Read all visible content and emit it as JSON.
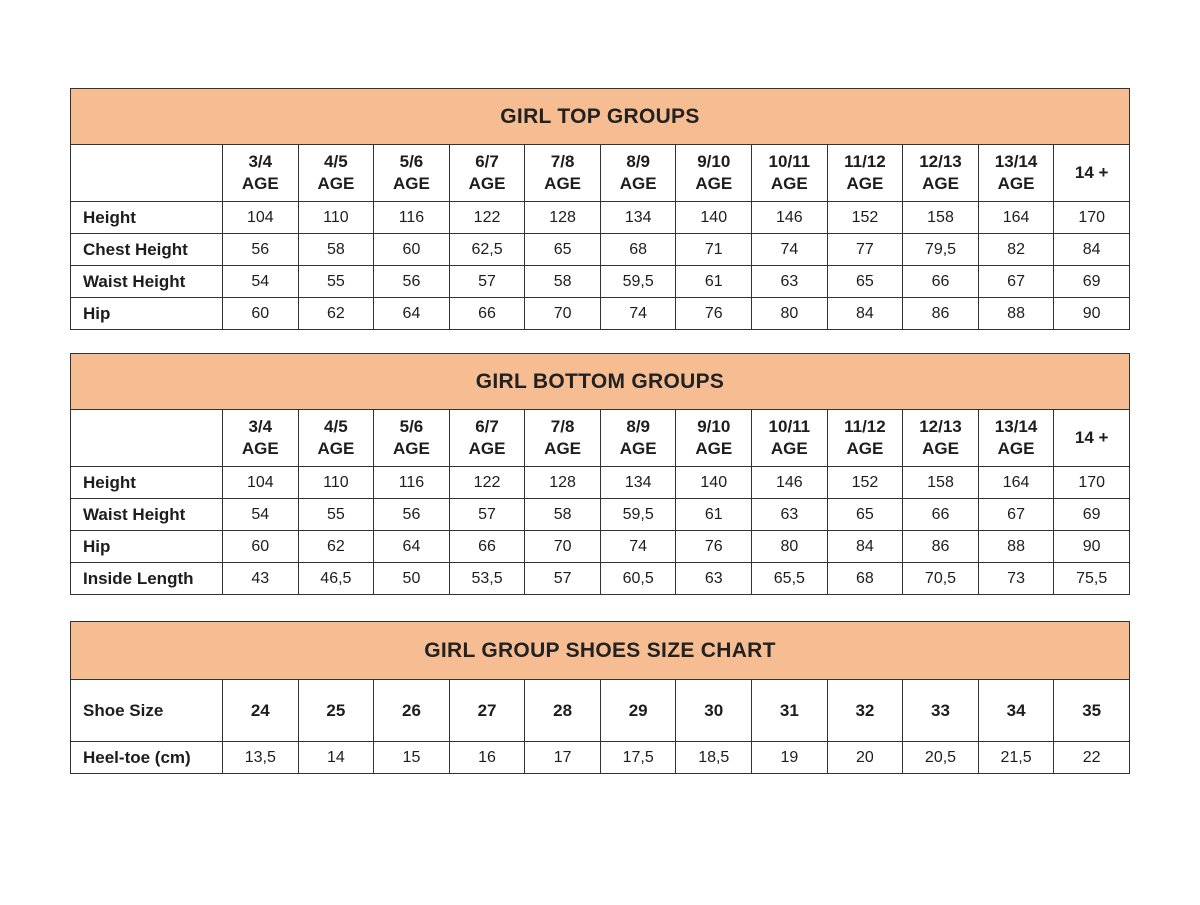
{
  "colors": {
    "band": "#f7bd92",
    "border": "#333333",
    "text": "#1d1d1d",
    "page_background": "#ffffff"
  },
  "chart_data": [
    {
      "type": "table",
      "name": "girl-top-groups-table",
      "title": "GIRL TOP GROUPS",
      "headers": [
        "3/4\nAGE",
        "4/5\nAGE",
        "5/6\nAGE",
        "6/7\nAGE",
        "7/8\nAGE",
        "8/9\nAGE",
        "9/10\nAGE",
        "10/11\nAGE",
        "11/12\nAGE",
        "12/13\nAGE",
        "13/14\nAGE",
        "14 +"
      ],
      "rows": [
        {
          "label": "Height",
          "values": [
            "104",
            "110",
            "116",
            "122",
            "128",
            "134",
            "140",
            "146",
            "152",
            "158",
            "164",
            "170"
          ]
        },
        {
          "label": "Chest Height",
          "values": [
            "56",
            "58",
            "60",
            "62,5",
            "65",
            "68",
            "71",
            "74",
            "77",
            "79,5",
            "82",
            "84"
          ]
        },
        {
          "label": "Waist Height",
          "values": [
            "54",
            "55",
            "56",
            "57",
            "58",
            "59,5",
            "61",
            "63",
            "65",
            "66",
            "67",
            "69"
          ]
        },
        {
          "label": "Hip",
          "values": [
            "60",
            "62",
            "64",
            "66",
            "70",
            "74",
            "76",
            "80",
            "84",
            "86",
            "88",
            "90"
          ]
        }
      ]
    },
    {
      "type": "table",
      "name": "girl-bottom-groups-table",
      "title": "GIRL BOTTOM GROUPS",
      "headers": [
        "3/4\nAGE",
        "4/5\nAGE",
        "5/6\nAGE",
        "6/7\nAGE",
        "7/8\nAGE",
        "8/9\nAGE",
        "9/10\nAGE",
        "10/11\nAGE",
        "11/12\nAGE",
        "12/13\nAGE",
        "13/14\nAGE",
        "14 +"
      ],
      "rows": [
        {
          "label": "Height",
          "values": [
            "104",
            "110",
            "116",
            "122",
            "128",
            "134",
            "140",
            "146",
            "152",
            "158",
            "164",
            "170"
          ]
        },
        {
          "label": "Waist Height",
          "values": [
            "54",
            "55",
            "56",
            "57",
            "58",
            "59,5",
            "61",
            "63",
            "65",
            "66",
            "67",
            "69"
          ]
        },
        {
          "label": "Hip",
          "values": [
            "60",
            "62",
            "64",
            "66",
            "70",
            "74",
            "76",
            "80",
            "84",
            "86",
            "88",
            "90"
          ]
        },
        {
          "label": "Inside Length",
          "values": [
            "43",
            "46,5",
            "50",
            "53,5",
            "57",
            "60,5",
            "63",
            "65,5",
            "68",
            "70,5",
            "73",
            "75,5"
          ]
        }
      ]
    },
    {
      "type": "table",
      "name": "girl-shoes-size-table",
      "title": "GIRL GROUP SHOES SIZE CHART",
      "rows": [
        {
          "label": "Shoe Size",
          "values": [
            "24",
            "25",
            "26",
            "27",
            "28",
            "29",
            "30",
            "31",
            "32",
            "33",
            "34",
            "35"
          ]
        },
        {
          "label": "Heel-toe (cm)",
          "values": [
            "13,5",
            "14",
            "15",
            "16",
            "17",
            "17,5",
            "18,5",
            "19",
            "20",
            "20,5",
            "21,5",
            "22"
          ]
        }
      ]
    }
  ]
}
